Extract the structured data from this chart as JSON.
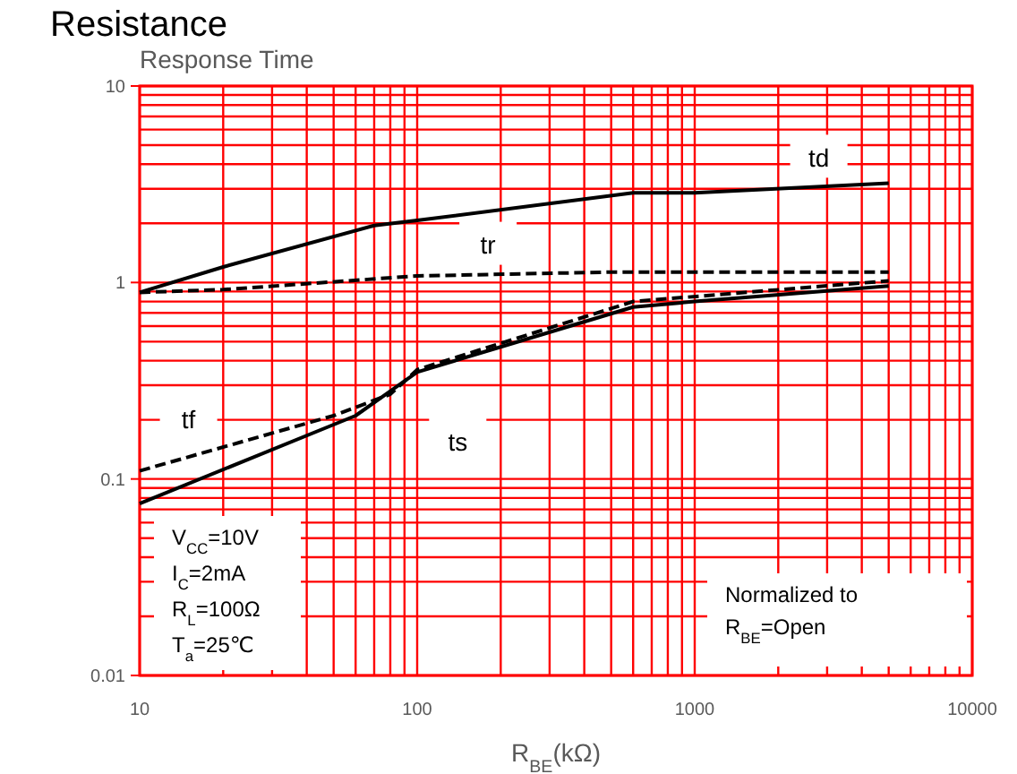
{
  "chart_data": {
    "type": "line",
    "title": "Resistance",
    "ylabel": "Response Time",
    "xlabel": "R$_{BE}$(kΩ)",
    "log": "xy",
    "grid": true,
    "xlim": [
      10,
      10000
    ],
    "xticks": [
      10,
      100,
      1000,
      10000
    ],
    "ylim": [
      0.01,
      10
    ],
    "yticks": [
      0.01,
      0.1,
      1,
      10
    ],
    "series": [
      {
        "name": "td",
        "color": "#000000",
        "line_style": "solid",
        "x": [
          10,
          20,
          70,
          100,
          600,
          1000,
          5000
        ],
        "values": [
          0.89,
          1.2,
          1.95,
          2.07,
          2.86,
          2.86,
          3.2
        ]
      },
      {
        "name": "tr",
        "color": "#000000",
        "line_style": "dashed",
        "x": [
          10,
          20,
          100,
          500,
          5000
        ],
        "values": [
          0.89,
          0.92,
          1.08,
          1.13,
          1.13
        ]
      },
      {
        "name": "tf",
        "color": "#000000",
        "line_style": "dashed",
        "x": [
          10,
          50,
          80,
          100,
          600,
          5000
        ],
        "values": [
          0.11,
          0.21,
          0.27,
          0.36,
          0.8,
          1.02
        ]
      },
      {
        "name": "ts",
        "color": "#000000",
        "line_style": "solid",
        "x": [
          10,
          60,
          80,
          100,
          200,
          600,
          1000,
          5000
        ],
        "values": [
          0.075,
          0.21,
          0.28,
          0.35,
          0.47,
          0.75,
          0.8,
          0.96
        ]
      }
    ],
    "annotations": [
      "V$_{CC}$=10V\nI$_{C}$=2mA\nR$_{L}$=100Ω\nT$_{a}$=25℃",
      "Normalized to\nR$_{BE}$=Open"
    ]
  }
}
